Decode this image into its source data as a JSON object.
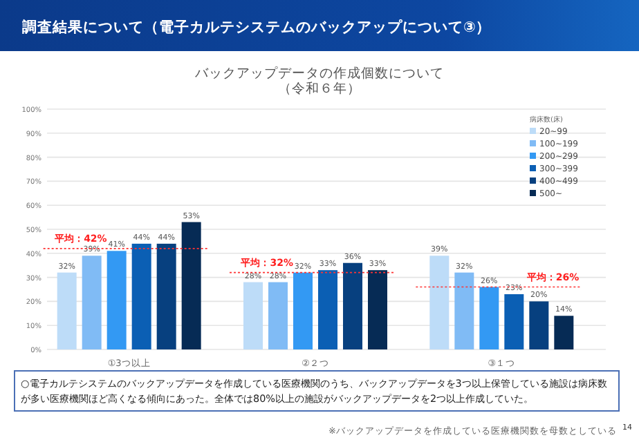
{
  "chart_data": {
    "type": "bar",
    "title": "調査結果について（電子カルテシステムのバックアップについて③）",
    "subtitle": "バックアップデータの作成個数について（令和６年）",
    "categories": [
      "①3つ以上",
      "②２つ",
      "③１つ"
    ],
    "series": [
      {
        "name": "20~99",
        "color": "#bddcf8",
        "values": [
          32,
          28,
          39
        ]
      },
      {
        "name": "100~199",
        "color": "#80bbf5",
        "values": [
          39,
          28,
          32
        ]
      },
      {
        "name": "200~299",
        "color": "#3399f3",
        "values": [
          41,
          32,
          26
        ]
      },
      {
        "name": "300~399",
        "color": "#0b5fb4",
        "values": [
          44,
          33,
          23
        ]
      },
      {
        "name": "400~499",
        "color": "#07407f",
        "values": [
          44,
          36,
          20
        ]
      },
      {
        "name": "500~",
        "color": "#062b55",
        "values": [
          53,
          33,
          14
        ]
      }
    ],
    "legend_title": "病床数(床)",
    "legend": "top right",
    "ylim": [
      0,
      100
    ],
    "yticks": [
      {
        "value": 0,
        "label": "0%"
      },
      {
        "value": 10,
        "label": "10%"
      },
      {
        "value": 20,
        "label": "20%"
      },
      {
        "value": 30,
        "label": "30%"
      },
      {
        "value": 40,
        "label": "40%"
      },
      {
        "value": 50,
        "label": "50%"
      },
      {
        "value": 60,
        "label": "60%"
      },
      {
        "value": 70,
        "label": "70%"
      },
      {
        "value": 80,
        "label": "80%"
      },
      {
        "value": 90,
        "label": "90%"
      },
      {
        "value": 100,
        "label": "100%"
      }
    ],
    "grid": "y",
    "value_labels": [
      [
        "32%",
        "28%",
        "39%"
      ],
      [
        "39%",
        "28%",
        "32%"
      ],
      [
        "41%",
        "32%",
        "26%"
      ],
      [
        "44%",
        "33%",
        "23%"
      ],
      [
        "44%",
        "36%",
        "20%"
      ],
      [
        "53%",
        "33%",
        "14%"
      ]
    ],
    "annotations": [
      {
        "text": "平均：42%",
        "x": "①3つ以上",
        "y": 42
      },
      {
        "text": "平均：32%",
        "x": "②２つ",
        "y": 32
      },
      {
        "text": "平均：26%",
        "x": "③１つ",
        "y": 26
      },
      "○電子カルテシステムのバックアップデータを作成している医療機関のうち、バックアップデータを3つ以上保管している施設は病床数が多い医療機関ほど高くなる傾向にあった。全体では80%以上の施設がバックアップデータを2つ以上作成していた。",
      "※バックアップデータを作成している医療機関数を母数としている",
      "14"
    ]
  }
}
